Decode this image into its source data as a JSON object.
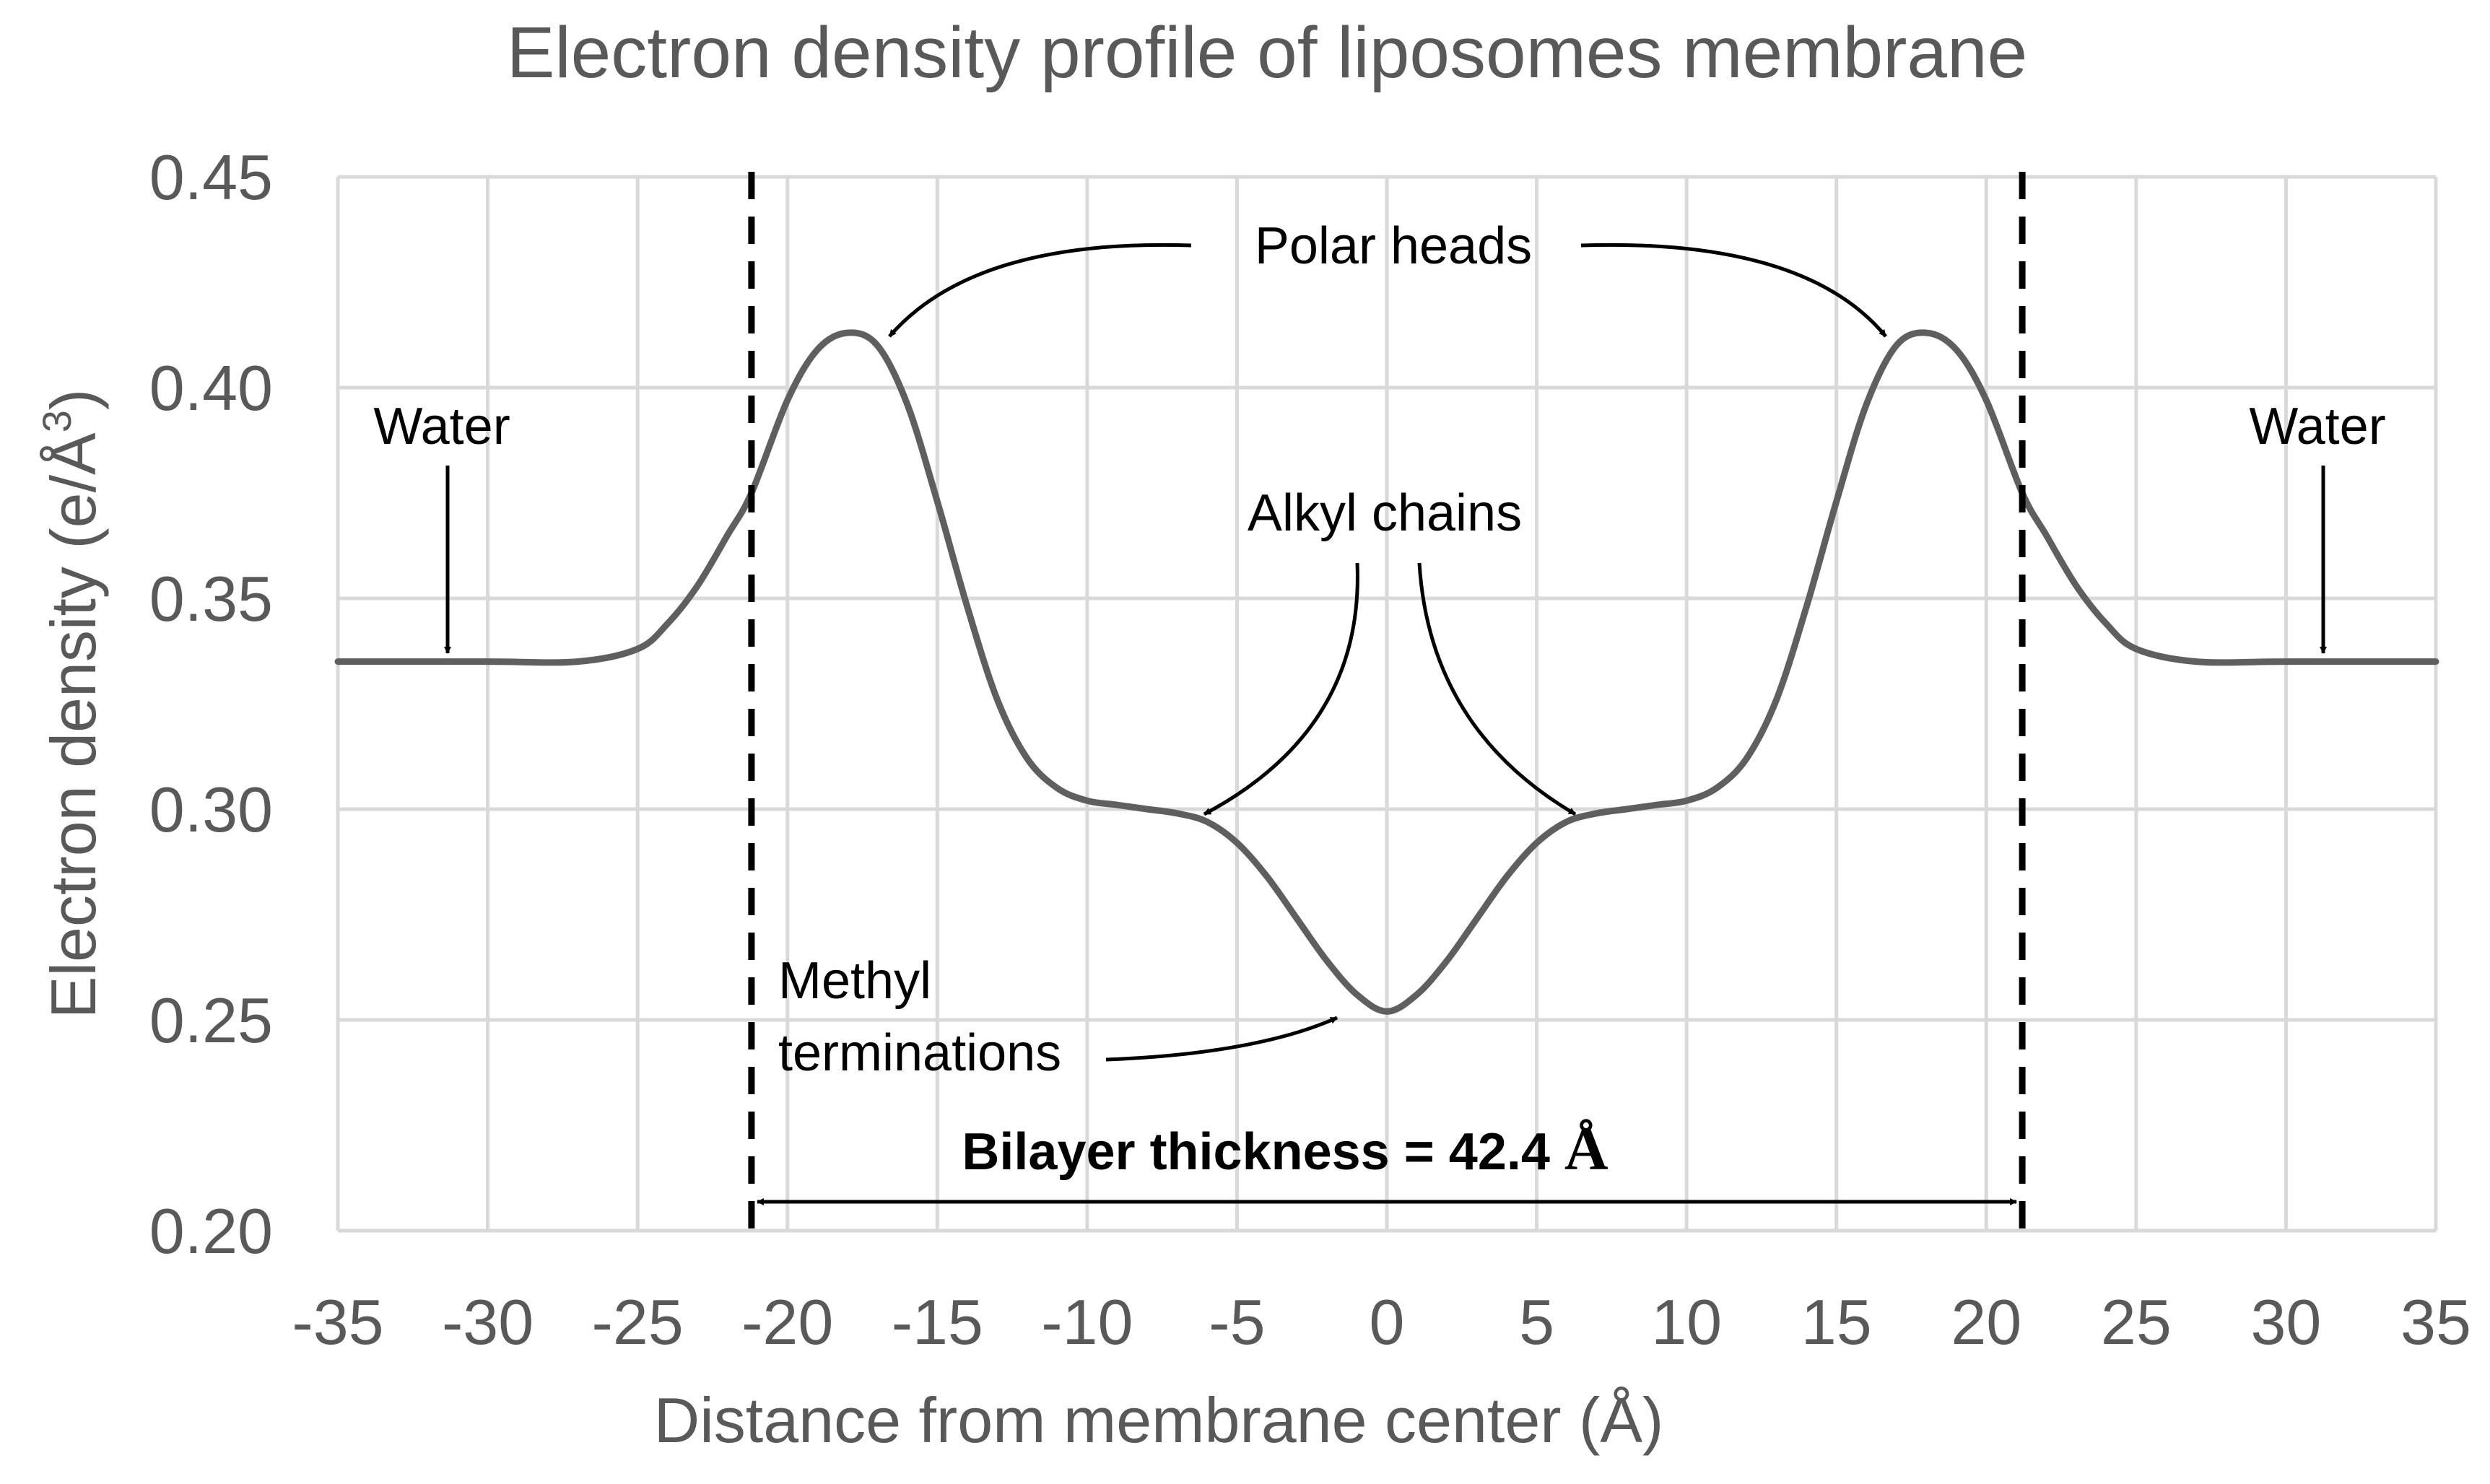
{
  "chart_data": {
    "type": "line",
    "title": "Electron density profile of liposomes membrane",
    "xlabel": "Distance from membrane center (Å)",
    "ylabel": "Electron density (e/Å³)",
    "ylabel_main": "Electron density (e/Å",
    "ylabel_sup": "3",
    "ylabel_end": ")",
    "xlim": [
      -35,
      35
    ],
    "ylim": [
      0.2,
      0.45
    ],
    "x_ticks": [
      -35,
      -30,
      -25,
      -20,
      -15,
      -10,
      -5,
      0,
      5,
      10,
      15,
      20,
      25,
      30,
      35
    ],
    "x_tick_labels": [
      "-35",
      "-30",
      "-25",
      "-20",
      "-15",
      "-10",
      "-5",
      "0",
      "5",
      "10",
      "15",
      "20",
      "25",
      "30",
      "35"
    ],
    "y_ticks": [
      0.2,
      0.25,
      0.3,
      0.35,
      0.4,
      0.45
    ],
    "y_tick_labels": [
      "0.20",
      "0.25",
      "0.30",
      "0.35",
      "0.40",
      "0.45"
    ],
    "grid": true,
    "series": [
      {
        "x": [
          -35,
          -30,
          -27,
          -25,
          -24,
          -23,
          -22,
          -21.2,
          -20,
          -19,
          -18,
          -17,
          -16,
          -15,
          -14,
          -13,
          -12,
          -11,
          -10,
          -9,
          -8,
          -7,
          -6,
          -5,
          -4,
          -3,
          -2,
          -1,
          0,
          1,
          2,
          3,
          4,
          5,
          6,
          7,
          8,
          9,
          10,
          11,
          12,
          13,
          14,
          15,
          16,
          17,
          18,
          19,
          20,
          21.2,
          22,
          23,
          24,
          25,
          27,
          30,
          35
        ],
        "y": [
          0.335,
          0.335,
          0.335,
          0.338,
          0.344,
          0.353,
          0.365,
          0.375,
          0.397,
          0.409,
          0.413,
          0.41,
          0.396,
          0.373,
          0.348,
          0.326,
          0.312,
          0.305,
          0.302,
          0.301,
          0.3,
          0.299,
          0.297,
          0.292,
          0.284,
          0.274,
          0.264,
          0.256,
          0.252,
          0.256,
          0.264,
          0.274,
          0.284,
          0.292,
          0.297,
          0.299,
          0.3,
          0.301,
          0.302,
          0.305,
          0.312,
          0.326,
          0.348,
          0.373,
          0.396,
          0.41,
          0.413,
          0.409,
          0.397,
          0.375,
          0.365,
          0.353,
          0.344,
          0.338,
          0.335,
          0.335,
          0.335
        ],
        "color": "#5f5f5f"
      }
    ],
    "markers": {
      "bilayer_left_x": -21.2,
      "bilayer_right_x": 21.2
    },
    "annotations": {
      "polar_heads": "Polar heads",
      "alkyl_chains": "Alkyl chains",
      "water_left": "Water",
      "water_right": "Water",
      "methyl_line1": "Methyl",
      "methyl_line2": "terminations",
      "bilayer_label": "Bilayer thickness = 42.4 ",
      "bilayer_unit": "Å"
    },
    "colors": {
      "curve": "#5f5f5f",
      "grid": "#d9d9d9",
      "text": "#595959",
      "annotation": "#000000"
    }
  }
}
